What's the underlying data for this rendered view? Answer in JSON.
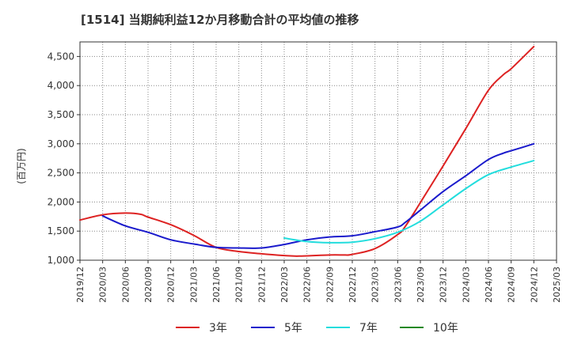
{
  "title": "[1514]  当期純利益12か月移動合計の平均値の推移",
  "chart_data": {
    "type": "line",
    "ylabel": "(百万円)",
    "xlabel": "",
    "ylim": [
      1000,
      4750
    ],
    "yticks": [
      1000,
      1500,
      2000,
      2500,
      3000,
      3500,
      4000,
      4500
    ],
    "ytick_labels": [
      "1,000",
      "1,500",
      "2,000",
      "2,500",
      "3,000",
      "3,500",
      "4,000",
      "4,500"
    ],
    "xticks": [
      "2019/12",
      "2020/03",
      "2020/06",
      "2020/09",
      "2020/12",
      "2021/03",
      "2021/06",
      "2021/09",
      "2021/12",
      "2022/03",
      "2022/06",
      "2022/09",
      "2022/12",
      "2023/03",
      "2023/06",
      "2023/09",
      "2023/12",
      "2024/03",
      "2024/06",
      "2024/09",
      "2024/12",
      "2025/03"
    ],
    "grid": true,
    "legend_position": "bottom",
    "series": [
      {
        "name": "3年",
        "color": "#dd2222",
        "x": [
          "2019/12",
          "2020/03",
          "2020/06",
          "2020/08",
          "2020/09",
          "2020/12",
          "2021/03",
          "2021/06",
          "2021/09",
          "2021/12",
          "2022/03",
          "2022/05",
          "2022/09",
          "2022/11",
          "2022/12",
          "2023/03",
          "2023/06",
          "2023/07",
          "2023/09",
          "2023/12",
          "2024/03",
          "2024/06",
          "2024/08",
          "2024/09",
          "2024/12"
        ],
        "values": [
          1690,
          1780,
          1810,
          1790,
          1740,
          1610,
          1430,
          1220,
          1150,
          1110,
          1080,
          1070,
          1090,
          1090,
          1100,
          1200,
          1440,
          1580,
          1990,
          2620,
          3260,
          3920,
          4190,
          4290,
          4670
        ]
      },
      {
        "name": "5年",
        "color": "#1a1acc",
        "x": [
          "2020/03",
          "2020/06",
          "2020/09",
          "2020/12",
          "2021/03",
          "2021/06",
          "2021/09",
          "2021/12",
          "2022/03",
          "2022/06",
          "2022/09",
          "2022/12",
          "2023/03",
          "2023/06",
          "2023/07",
          "2023/09",
          "2023/12",
          "2024/03",
          "2024/06",
          "2024/08",
          "2024/09",
          "2024/12"
        ],
        "values": [
          1760,
          1590,
          1480,
          1350,
          1280,
          1220,
          1210,
          1210,
          1270,
          1350,
          1400,
          1420,
          1490,
          1570,
          1650,
          1860,
          2180,
          2450,
          2730,
          2840,
          2880,
          3000
        ]
      },
      {
        "name": "7年",
        "color": "#22dddd",
        "x": [
          "2022/03",
          "2022/06",
          "2022/09",
          "2022/12",
          "2023/03",
          "2023/06",
          "2023/09",
          "2023/12",
          "2024/03",
          "2024/06",
          "2024/09",
          "2024/12"
        ],
        "values": [
          1380,
          1320,
          1300,
          1310,
          1370,
          1480,
          1670,
          1950,
          2230,
          2470,
          2600,
          2710
        ]
      },
      {
        "name": "10年",
        "color": "#228822",
        "x": [],
        "values": []
      }
    ]
  }
}
